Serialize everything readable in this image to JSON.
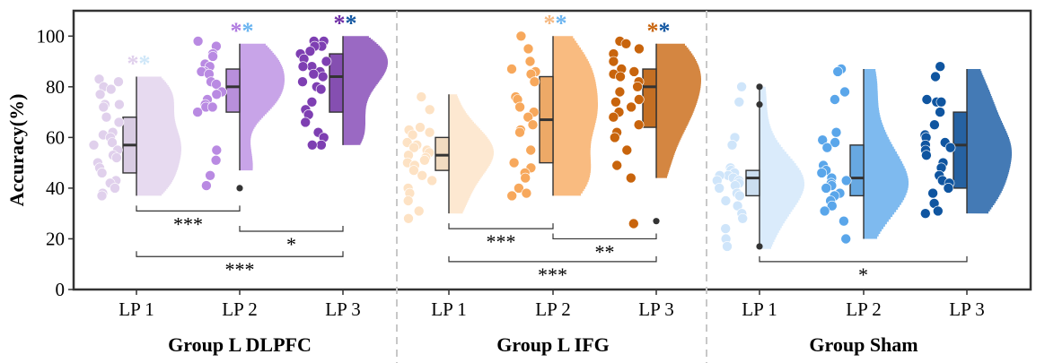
{
  "chart_data": {
    "type": "raincloud",
    "ylabel": "Accuracy(%)",
    "ylim": [
      0,
      110
    ],
    "yticks": [
      0,
      20,
      40,
      60,
      80,
      100
    ],
    "grid": false,
    "groups": [
      {
        "name": "Group L DLPFC",
        "conditions": [
          {
            "label": "LP 1",
            "color": "#e0d0ec",
            "star_colors": [
              "#e0d0ec",
              "#cfe7f8"
            ],
            "box": {
              "q1": 46,
              "median": 57,
              "q3": 68,
              "min": 37,
              "max": 84
            },
            "points": [
              83,
              82,
              80,
              79,
              77,
              73,
              73,
              72,
              68,
              66,
              62,
              61,
              60,
              58,
              57,
              55,
              53,
              52,
              50,
              48,
              46,
              43,
              42,
              40,
              38,
              37
            ]
          },
          {
            "label": "LP 2",
            "color": "#b98ae2",
            "star_colors": [
              "#b07be0",
              "#6ab4f0"
            ],
            "box": {
              "q1": 70,
              "median": 80,
              "q3": 87,
              "min": 47,
              "max": 97
            },
            "points": [
              98,
              96,
              93,
              92,
              89,
              88,
              86,
              86,
              85,
              82,
              81,
              78,
              77,
              75,
              73,
              72,
              72,
              70,
              55,
              51,
              45,
              41
            ],
            "outliers": [
              40
            ]
          },
          {
            "label": "LP 3",
            "color": "#7e3fb2",
            "star_colors": [
              "#6e2da5",
              "#0f55a0"
            ],
            "box": {
              "q1": 70,
              "median": 84,
              "q3": 93,
              "min": 57,
              "max": 100
            },
            "points": [
              98,
              98,
              96,
              96,
              94,
              93,
              91,
              90,
              88,
              88,
              86,
              85,
              84,
              82,
              80,
              79,
              74,
              71,
              69,
              66,
              62,
              60,
              57,
              57
            ]
          }
        ]
      },
      {
        "name": "Group L IFG",
        "conditions": [
          {
            "label": "LP 1",
            "color": "#fde2c4",
            "star_colors": [],
            "box": {
              "q1": 47,
              "median": 53,
              "q3": 60,
              "min": 30,
              "max": 77
            },
            "points": [
              76,
              71,
              64,
              63,
              62,
              61,
              58,
              57,
              56,
              55,
              54,
              53,
              52,
              51,
              50,
              49,
              47,
              45,
              43,
              40,
              38,
              35,
              31,
              28
            ]
          },
          {
            "label": "LP 2",
            "color": "#f7a85c",
            "star_colors": [
              "#f5b880",
              "#6ab4f0"
            ],
            "box": {
              "q1": 50,
              "median": 67,
              "q3": 84,
              "min": 37,
              "max": 100
            },
            "points": [
              100,
              95,
              90,
              87,
              86,
              85,
              82,
              76,
              75,
              72,
              70,
              68,
              65,
              63,
              62,
              55,
              50,
              48,
              46,
              44,
              40,
              38,
              37
            ]
          },
          {
            "label": "LP 3",
            "color": "#c8640c",
            "star_colors": [
              "#c8640c",
              "#0f55a0"
            ],
            "box": {
              "q1": 64,
              "median": 80,
              "q3": 87,
              "min": 44,
              "max": 97
            },
            "points": [
              98,
              97,
              95,
              93,
              90,
              87,
              86,
              85,
              84,
              82,
              80,
              78,
              75,
              74,
              72,
              70,
              68,
              65,
              62,
              60,
              55,
              49,
              44,
              26
            ],
            "outliers": [
              27
            ]
          }
        ]
      },
      {
        "name": "Group Sham",
        "conditions": [
          {
            "label": "LP 1",
            "color": "#cfe5fa",
            "star_colors": [],
            "box": {
              "q1": 37,
              "median": 44,
              "q3": 47,
              "min": 16,
              "max": 80
            },
            "points": [
              80,
              74,
              60,
              57,
              48,
              47,
              46,
              45,
              45,
              44,
              43,
              43,
              42,
              41,
              40,
              38,
              37,
              35,
              33,
              30,
              28,
              24,
              20,
              17
            ],
            "outliers": [
              80,
              73,
              17
            ]
          },
          {
            "label": "LP 2",
            "color": "#5aa6ea",
            "star_colors": [],
            "box": {
              "q1": 37,
              "median": 44,
              "q3": 57,
              "min": 20,
              "max": 87
            },
            "points": [
              87,
              86,
              78,
              75,
              62,
              59,
              58,
              56,
              49,
              47,
              46,
              44,
              43,
              42,
              41,
              40,
              38,
              37,
              35,
              33,
              31,
              27,
              20
            ]
          },
          {
            "label": "LP 3",
            "color": "#0f55a0",
            "star_colors": [],
            "box": {
              "q1": 40,
              "median": 57,
              "q3": 70,
              "min": 30,
              "max": 87
            },
            "points": [
              88,
              84,
              75,
              74,
              74,
              70,
              65,
              61,
              60,
              58,
              57,
              56,
              55,
              53,
              50,
              48,
              45,
              43,
              42,
              40,
              38,
              34,
              31,
              30
            ]
          }
        ]
      }
    ],
    "significance": [
      {
        "group": 0,
        "from": 0,
        "to": 1,
        "y": 31,
        "label": "***"
      },
      {
        "group": 0,
        "from": 1,
        "to": 2,
        "y": 23,
        "label": "*"
      },
      {
        "group": 0,
        "from": 0,
        "to": 2,
        "y": 13,
        "label": "***"
      },
      {
        "group": 1,
        "from": 0,
        "to": 1,
        "y": 24,
        "label": "***"
      },
      {
        "group": 1,
        "from": 1,
        "to": 2,
        "y": 20,
        "label": "**"
      },
      {
        "group": 1,
        "from": 0,
        "to": 2,
        "y": 11,
        "label": "***"
      },
      {
        "group": 2,
        "from": 0,
        "to": 2,
        "y": 11,
        "label": "*"
      }
    ]
  }
}
